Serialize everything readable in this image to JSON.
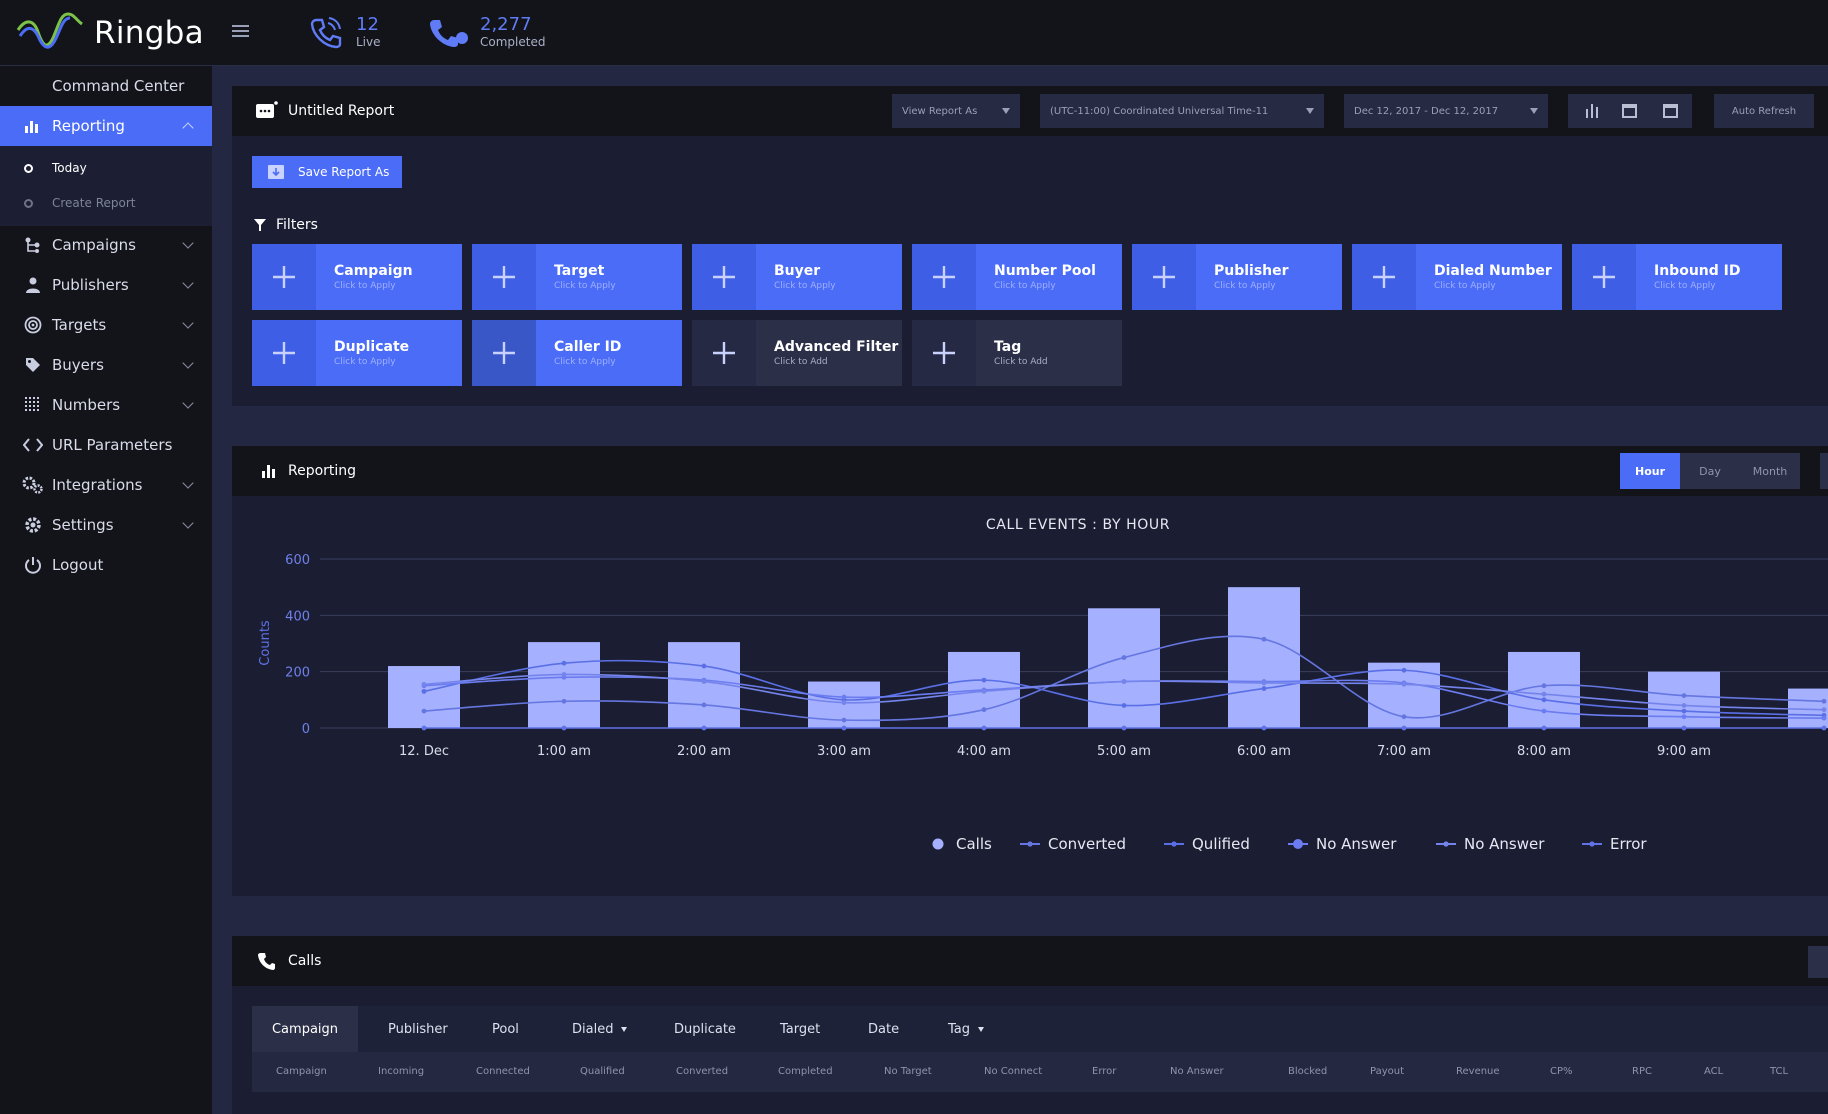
{
  "app": {
    "name": "Ringba"
  },
  "colors": {
    "accent": "#4a6cf7",
    "bar": "#a5b0ff",
    "line": "#5f72e8"
  },
  "topbar": {
    "live": {
      "value": "12",
      "label": "Live"
    },
    "completed": {
      "value": "2,277",
      "label": "Completed"
    }
  },
  "sidebar": {
    "items": [
      {
        "label": "Command Center",
        "icon": "none"
      },
      {
        "label": "Reporting",
        "icon": "bar-chart-icon"
      },
      {
        "label": "Campaigns",
        "icon": "campaign-icon"
      },
      {
        "label": "Publishers",
        "icon": "user-icon"
      },
      {
        "label": "Targets",
        "icon": "target-icon"
      },
      {
        "label": "Buyers",
        "icon": "tag-icon"
      },
      {
        "label": "Numbers",
        "icon": "grid-icon"
      },
      {
        "label": "URL Parameters",
        "icon": "code-icon"
      },
      {
        "label": "Integrations",
        "icon": "cogs-icon"
      },
      {
        "label": "Settings",
        "icon": "gear-icon"
      },
      {
        "label": "Logout",
        "icon": "power-icon"
      }
    ],
    "sub": [
      "Today",
      "Create Report"
    ]
  },
  "report": {
    "title": "Untitled Report",
    "view_as": "View Report As",
    "timezone": "(UTC-11:00) Coordinated Universal Time-11",
    "date_range": "Dec 12, 2017 - Dec 12, 2017",
    "auto_refresh": "Auto Refresh",
    "save_as": "Save Report As",
    "filters_label": "Filters"
  },
  "filters": [
    {
      "title": "Campaign",
      "sub": "Click to Apply"
    },
    {
      "title": "Target",
      "sub": "Click to Apply"
    },
    {
      "title": "Buyer",
      "sub": "Click to Apply"
    },
    {
      "title": "Number Pool",
      "sub": "Click to Apply"
    },
    {
      "title": "Publisher",
      "sub": "Click to Apply"
    },
    {
      "title": "Dialed Number",
      "sub": "Click to Apply"
    },
    {
      "title": "Inbound ID",
      "sub": "Click to Apply"
    },
    {
      "title": "Duplicate",
      "sub": "Click to Apply"
    },
    {
      "title": "Caller ID",
      "sub": "Click to Apply"
    },
    {
      "title": "Advanced Filter",
      "sub": "Click to Add"
    },
    {
      "title": "Tag",
      "sub": "Click to Add"
    }
  ],
  "reporting": {
    "title": "Reporting",
    "granularity": [
      "Hour",
      "Day",
      "Month"
    ]
  },
  "chart_data": {
    "type": "bar",
    "title": "CALL EVENTS : BY HOUR",
    "ylabel": "Counts",
    "ylim": [
      0,
      600
    ],
    "yticks": [
      "0",
      "200",
      "400",
      "600"
    ],
    "categories": [
      "12. Dec",
      "1:00 am",
      "2:00 am",
      "3:00 am",
      "4:00 am",
      "5:00 am",
      "6:00 am",
      "7:00 am",
      "8:00 am",
      "9:00 am",
      ""
    ],
    "series": [
      {
        "name": "Calls",
        "type": "bar",
        "values": [
          220,
          305,
          305,
          165,
          270,
          425,
          500,
          232,
          270,
          200,
          140
        ]
      },
      {
        "name": "Converted",
        "type": "line",
        "values": [
          60,
          95,
          82,
          28,
          65,
          250,
          315,
          40,
          150,
          115,
          95
        ]
      },
      {
        "name": "Qulified",
        "type": "line",
        "values": [
          130,
          230,
          220,
          100,
          170,
          80,
          140,
          205,
          100,
          60,
          45
        ]
      },
      {
        "name": "No Answer",
        "type": "line",
        "values": [
          150,
          180,
          170,
          110,
          135,
          165,
          165,
          160,
          60,
          40,
          35
        ]
      },
      {
        "name": "No Answer",
        "type": "line",
        "values": [
          155,
          190,
          165,
          90,
          130,
          165,
          160,
          155,
          120,
          80,
          65
        ]
      },
      {
        "name": "Error",
        "type": "line",
        "values": [
          0,
          0,
          0,
          0,
          0,
          0,
          0,
          0,
          0,
          0,
          0
        ]
      }
    ],
    "legend": "bottom"
  },
  "calls": {
    "title": "Calls",
    "tabs": [
      "Campaign",
      "Publisher",
      "Pool",
      "Dialed",
      "Duplicate",
      "Target",
      "Date",
      "Tag"
    ],
    "columns": [
      "Campaign",
      "Incoming",
      "Connected",
      "Qualified",
      "Converted",
      "Completed",
      "No Target",
      "No Connect",
      "Error",
      "No Answer",
      "Blocked",
      "Payout",
      "Revenue",
      "CP%",
      "RPC",
      "ACL",
      "TCL"
    ]
  }
}
